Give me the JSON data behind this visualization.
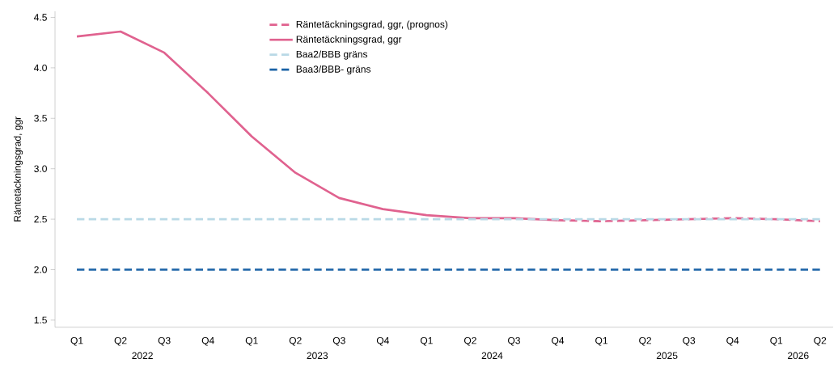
{
  "chart_data": {
    "type": "line",
    "ylabel": "Räntetäckningsgrad, ggr",
    "categories": [
      "Q1",
      "Q2",
      "Q3",
      "Q4",
      "Q1",
      "Q2",
      "Q3",
      "Q4",
      "Q1",
      "Q2",
      "Q3",
      "Q4",
      "Q1",
      "Q2",
      "Q3",
      "Q4",
      "Q1",
      "Q2"
    ],
    "annotations": [
      "2022",
      "2023",
      "2024",
      "2025",
      "2026"
    ],
    "series": [
      {
        "name": "Räntetäckningsgrad, ggr, (prognos)",
        "color": "#e0628f",
        "line_style": "dashed",
        "values": [
          null,
          null,
          null,
          null,
          null,
          null,
          null,
          null,
          null,
          null,
          null,
          2.49,
          2.48,
          2.49,
          2.5,
          2.51,
          2.5,
          2.48
        ]
      },
      {
        "name": "Räntetäckningsgrad, ggr",
        "color": "#e0628f",
        "line_style": "solid",
        "values": [
          4.31,
          4.36,
          4.15,
          3.75,
          3.32,
          2.96,
          2.71,
          2.6,
          2.54,
          2.51,
          2.51,
          2.49,
          null,
          null,
          null,
          null,
          null,
          null
        ]
      },
      {
        "name": "Baa2/BBB gräns",
        "color": "#b9d9e6",
        "line_style": "dashed",
        "values": [
          2.5,
          2.5,
          2.5,
          2.5,
          2.5,
          2.5,
          2.5,
          2.5,
          2.5,
          2.5,
          2.5,
          2.5,
          2.5,
          2.5,
          2.5,
          2.5,
          2.5,
          2.5
        ]
      },
      {
        "name": "Baa3/BBB- gräns",
        "color": "#1a62a6",
        "line_style": "dashed",
        "values": [
          2,
          2,
          2,
          2,
          2,
          2,
          2,
          2,
          2,
          2,
          2,
          2,
          2,
          2,
          2,
          2,
          2,
          2
        ]
      }
    ],
    "ylim": [
      1.43,
      4.56
    ],
    "yticks": [
      1.5,
      {
        "value": 2,
        "label": "2.0"
      },
      2.5,
      {
        "value": 3,
        "label": "3.0"
      },
      3.5,
      {
        "value": 4,
        "label": "4.0"
      },
      4.5
    ],
    "grid": false,
    "legend": "top",
    "marker": "none"
  }
}
